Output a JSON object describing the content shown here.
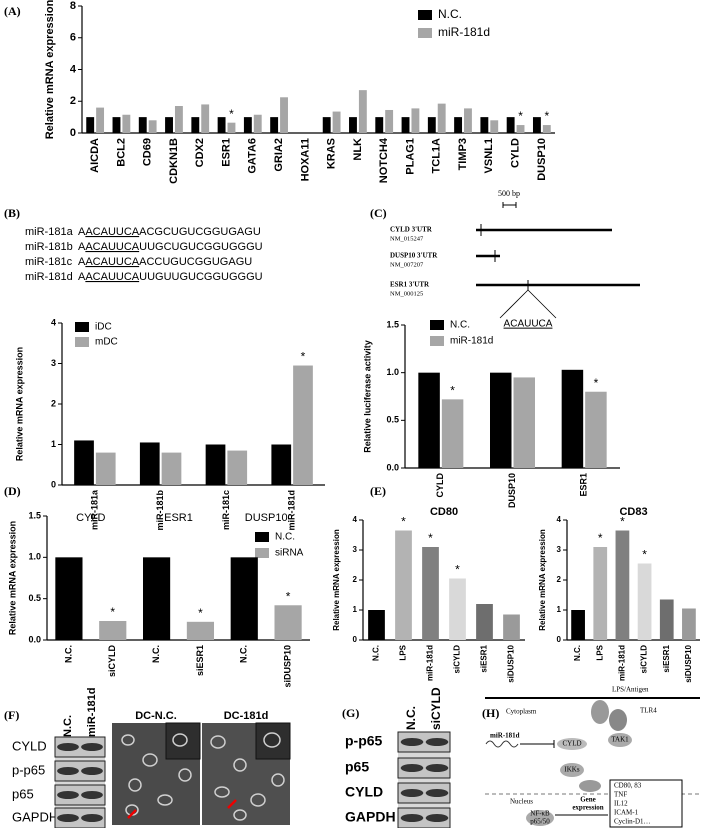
{
  "panels": {
    "A": "(A)",
    "B": "(B)",
    "C": "(C)",
    "D": "(D)",
    "E": "(E)",
    "F": "(F)",
    "G": "(G)",
    "H": "(H)"
  },
  "sequences": [
    {
      "name": "miR-181a",
      "prefix": "A",
      "seed": "ACAUUCA",
      "rest": "ACGCUGUCGGUGAGU"
    },
    {
      "name": "miR-181b",
      "prefix": "A",
      "seed": "ACAUUCA",
      "rest": "UUGCUGUCGGUGGGU"
    },
    {
      "name": "miR-181c",
      "prefix": "A",
      "seed": "ACAUUCA",
      "rest": "ACCUGUCGGUGAGU"
    },
    {
      "name": "miR-181d",
      "prefix": "A",
      "seed": "ACAUUCA",
      "rest": "UUGUUGUCGGUGGGU"
    }
  ],
  "utr_map": {
    "scale": "500 bp",
    "genes": [
      {
        "name": "CYLD 3'UTR",
        "accession": "NM_015247"
      },
      {
        "name": "DUSP10 3'UTR",
        "accession": "NM_007207"
      },
      {
        "name": "ESR1 3'UTR",
        "accession": "NM_000125"
      }
    ],
    "site": "ACAUUCA"
  },
  "western_f": {
    "columns": [
      "N.C.",
      "miR-181d"
    ],
    "rows": [
      "CYLD",
      "p-p65",
      "p65",
      "GAPDH"
    ]
  },
  "micrographs": [
    "DC-N.C.",
    "DC-181d"
  ],
  "western_g": {
    "columns": [
      "N.C.",
      "siCYLD"
    ],
    "rows": [
      "p-p65",
      "p65",
      "CYLD",
      "GAPDH"
    ]
  },
  "pathway": {
    "ligand": "LPS/Antigen",
    "receptor": "TLR4",
    "cytoplasm": "Cytoplasm",
    "mirna": "miR-181d",
    "cyld": "CYLD",
    "tak1": "TAK1",
    "ikk": "IKKs",
    "nucleus": "Nucleus",
    "nfkb": [
      "NF-κB",
      "p65/50"
    ],
    "expression": [
      "Gene",
      "expression"
    ],
    "genes": [
      "CD80, 83",
      "TNF",
      "IL12",
      "ICAM-1",
      "Cyclin-D1…"
    ]
  },
  "chart_data": [
    {
      "type": "bar",
      "ylabel": "Relative mRNA expression",
      "categories": [
        "AICDA",
        "BCL2",
        "CD69",
        "CDKN1B",
        "CDX2",
        "ESR1",
        "GATA6",
        "GRIA2",
        "HOXA11",
        "KRAS",
        "NLK",
        "NOTCH4",
        "PLAG1",
        "TCL1A",
        "TIMP3",
        "VSNL1",
        "CYLD",
        "DUSP10"
      ],
      "series": [
        {
          "name": "N.C.",
          "color": "#000000",
          "values": [
            1,
            1,
            1,
            1,
            1,
            1,
            1,
            1,
            null,
            1,
            1,
            1,
            1,
            1,
            1,
            1,
            1,
            1
          ]
        },
        {
          "name": "miR-181d",
          "color": "#a6a6a6",
          "values": [
            1.6,
            1.15,
            0.8,
            1.7,
            1.8,
            0.65,
            1.15,
            2.25,
            null,
            1.35,
            2.7,
            1.45,
            1.55,
            1.85,
            1.55,
            0.8,
            0.5,
            0.5
          ],
          "value_labels": [
            null,
            null,
            null,
            null,
            null,
            "*",
            null,
            null,
            null,
            null,
            null,
            null,
            null,
            null,
            null,
            null,
            "*",
            "*"
          ]
        }
      ],
      "ylim": [
        0,
        8
      ],
      "yticks": [
        0,
        2,
        4,
        6,
        8
      ]
    },
    {
      "type": "bar",
      "ylabel": "Relative mRNA expression",
      "categories": [
        "miR-181a",
        "miR-181b",
        "miR-181c",
        "miR-181d"
      ],
      "series": [
        {
          "name": "iDC",
          "color": "#000000",
          "values": [
            1.1,
            1.05,
            1.0,
            1.0
          ]
        },
        {
          "name": "mDC",
          "color": "#a6a6a6",
          "values": [
            0.8,
            0.8,
            0.85,
            2.95
          ],
          "value_labels": [
            null,
            null,
            null,
            "*"
          ]
        }
      ],
      "ylim": [
        0,
        4
      ],
      "yticks": [
        0,
        1,
        2,
        3,
        4
      ]
    },
    {
      "type": "bar",
      "ylabel": "Relative luciferase activity",
      "categories": [
        "CYLD",
        "DUSP10",
        "ESR1"
      ],
      "series": [
        {
          "name": "N.C.",
          "color": "#000000",
          "values": [
            1.0,
            1.0,
            1.03
          ]
        },
        {
          "name": "miR-181d",
          "color": "#a6a6a6",
          "values": [
            0.72,
            0.95,
            0.8
          ],
          "value_labels": [
            "*",
            null,
            "*"
          ]
        }
      ],
      "ylim": [
        0,
        1.5
      ],
      "yticks": [
        {
          "value": 0,
          "label": "0.0"
        },
        0.5,
        {
          "value": 1,
          "label": "1.0"
        },
        1.5
      ]
    },
    {
      "type": "bar",
      "ylabel": "Relative mRNA expression",
      "categories": [
        "N.C.",
        "siCYLD",
        "N.C.",
        "siESR1",
        "N.C.",
        "siDUSP10"
      ],
      "group_labels": [
        "CYLD",
        "ESR1",
        "DUSP10"
      ],
      "series": [
        {
          "name": "N.C.",
          "color": "#000000",
          "values": [
            1.0,
            null,
            1.0,
            null,
            1.0,
            null
          ]
        },
        {
          "name": "siRNA",
          "color": "#a6a6a6",
          "values": [
            null,
            0.23,
            null,
            0.22,
            null,
            0.42
          ],
          "value_labels": [
            null,
            "*",
            null,
            "*",
            null,
            "*"
          ]
        }
      ],
      "ylim": [
        0,
        1.5
      ],
      "yticks": [
        {
          "value": 0,
          "label": "0.0"
        },
        0.5,
        {
          "value": 1,
          "label": "1.0"
        },
        1.5
      ]
    },
    {
      "type": "bar",
      "title": "CD80",
      "ylabel": "Relative mRNA expression",
      "categories": [
        "N.C.",
        "LPS",
        "miR-181d",
        "siCYLD",
        "siESR1",
        "siDUSP10"
      ],
      "values": [
        1.0,
        3.65,
        3.1,
        2.05,
        1.2,
        0.85
      ],
      "value_labels": [
        null,
        "*",
        "*",
        "*",
        null,
        null
      ],
      "colors": [
        "#000000",
        "#b3b3b3",
        "#808080",
        "#d9d9d9",
        "#6e6e6e",
        "#9a9a9a"
      ],
      "ylim": [
        0,
        4
      ],
      "yticks": [
        0,
        1,
        2,
        3,
        4
      ]
    },
    {
      "type": "bar",
      "title": "CD83",
      "ylabel": "Relative mRNA expression",
      "categories": [
        "N.C.",
        "LPS",
        "miR-181d",
        "siCYLD",
        "siESR1",
        "siDUSP10"
      ],
      "values": [
        1.0,
        3.1,
        3.65,
        2.55,
        1.35,
        1.05
      ],
      "value_labels": [
        null,
        "*",
        "*",
        "*",
        null,
        null
      ],
      "colors": [
        "#000000",
        "#b3b3b3",
        "#808080",
        "#d9d9d9",
        "#6e6e6e",
        "#9a9a9a"
      ],
      "ylim": [
        0,
        4
      ],
      "yticks": [
        0,
        1,
        2,
        3,
        4
      ]
    }
  ]
}
